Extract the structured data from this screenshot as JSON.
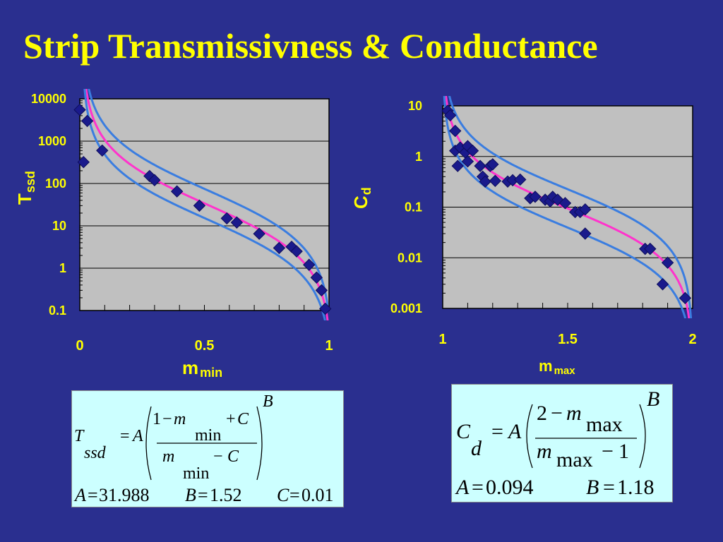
{
  "slide": {
    "title": "Strip Transmissivness & Conductance"
  },
  "colors": {
    "background": "#2a2f8f",
    "title": "#ffff00",
    "plot_area": "#c0c0c0",
    "data_points": "#1a1a8c",
    "fit_curve": "#ff33cc",
    "bound_curves": "#3a7de0",
    "equation_box": "#ccffff"
  },
  "chart_data": [
    {
      "id": "left",
      "type": "scatter",
      "title": "",
      "xlabel": {
        "main": "m",
        "sub": "min"
      },
      "ylabel": {
        "main": "T",
        "sub": "ssd"
      },
      "xlim": [
        0,
        1
      ],
      "ylim": [
        0.1,
        10000
      ],
      "yscale": "log",
      "grid": "horizontal",
      "x_ticks": [
        "0",
        "0.5",
        "1"
      ],
      "y_ticks": [
        "0.1",
        "1",
        "10",
        "100",
        "1000",
        "10000"
      ],
      "series": [
        {
          "kind": "points",
          "points": [
            [
              0.0,
              5500
            ],
            [
              0.015,
              320
            ],
            [
              0.03,
              3000
            ],
            [
              0.09,
              600
            ],
            [
              0.28,
              150
            ],
            [
              0.3,
              120
            ],
            [
              0.39,
              65
            ],
            [
              0.48,
              30
            ],
            [
              0.59,
              15
            ],
            [
              0.63,
              12
            ],
            [
              0.72,
              6.5
            ],
            [
              0.8,
              3
            ],
            [
              0.85,
              3.2
            ],
            [
              0.87,
              2.5
            ],
            [
              0.92,
              1.2
            ],
            [
              0.95,
              0.6
            ],
            [
              0.97,
              0.3
            ],
            [
              0.985,
              0.11
            ]
          ]
        },
        {
          "kind": "fit",
          "A": 31.988,
          "B": 1.52,
          "C": 0.01
        },
        {
          "kind": "upper_bound",
          "A": 31.988,
          "B": 1.52,
          "C": 0.01,
          "factor": 2.2
        },
        {
          "kind": "lower_bound",
          "A": 31.988,
          "B": 1.52,
          "C": 0.01,
          "factor": 0.45
        }
      ]
    },
    {
      "id": "right",
      "type": "scatter",
      "title": "",
      "xlabel": {
        "main": "m",
        "sub": "max"
      },
      "ylabel": {
        "main": "C",
        "sub": "d"
      },
      "xlim": [
        1,
        2
      ],
      "ylim": [
        0.001,
        10
      ],
      "yscale": "log",
      "grid": "horizontal",
      "x_ticks": [
        "1",
        "1.5",
        "2"
      ],
      "y_ticks": [
        "0.001",
        "0.01",
        "0.1",
        "1",
        "10"
      ],
      "series": [
        {
          "kind": "points",
          "points": [
            [
              1.02,
              8
            ],
            [
              1.03,
              6.5
            ],
            [
              1.05,
              3.2
            ],
            [
              1.05,
              1.3
            ],
            [
              1.06,
              0.65
            ],
            [
              1.07,
              1.5
            ],
            [
              1.09,
              1.2
            ],
            [
              1.1,
              1.6
            ],
            [
              1.1,
              0.8
            ],
            [
              1.12,
              1.3
            ],
            [
              1.15,
              0.65
            ],
            [
              1.16,
              0.4
            ],
            [
              1.17,
              0.32
            ],
            [
              1.19,
              0.65
            ],
            [
              1.2,
              0.7
            ],
            [
              1.21,
              0.33
            ],
            [
              1.26,
              0.32
            ],
            [
              1.28,
              0.34
            ],
            [
              1.31,
              0.35
            ],
            [
              1.35,
              0.15
            ],
            [
              1.37,
              0.16
            ],
            [
              1.41,
              0.14
            ],
            [
              1.43,
              0.13
            ],
            [
              1.44,
              0.16
            ],
            [
              1.46,
              0.14
            ],
            [
              1.49,
              0.12
            ],
            [
              1.53,
              0.08
            ],
            [
              1.55,
              0.08
            ],
            [
              1.57,
              0.09
            ],
            [
              1.57,
              0.03
            ],
            [
              1.81,
              0.015
            ],
            [
              1.83,
              0.015
            ],
            [
              1.88,
              0.003
            ],
            [
              1.9,
              0.008
            ],
            [
              1.97,
              0.0016
            ]
          ]
        },
        {
          "kind": "fit",
          "A": 0.094,
          "B": 1.18
        },
        {
          "kind": "upper_bound",
          "A": 0.094,
          "B": 1.18,
          "factor": 2.4
        },
        {
          "kind": "lower_bound",
          "A": 0.094,
          "B": 1.18,
          "factor": 0.42
        }
      ]
    }
  ],
  "equations": {
    "left": {
      "lhs_main": "T",
      "lhs_sub": "ssd",
      "eq": "=",
      "coef": "A",
      "num_one": "1",
      "num_minus": "−",
      "num_m": "m",
      "num_sub": "min",
      "num_plus": "+",
      "num_c": "C",
      "den_m": "m",
      "den_sub": "min",
      "den_minus": "−",
      "den_c": "C",
      "power": "B",
      "params": [
        {
          "name": "A",
          "value": "31.988"
        },
        {
          "name": "B",
          "value": "1.52"
        },
        {
          "name": "C",
          "value": "0.01"
        }
      ]
    },
    "right": {
      "lhs_main": "C",
      "lhs_sub": "d",
      "eq": "=",
      "coef": "A",
      "num_two": "2",
      "num_minus": "−",
      "num_m": "m",
      "num_sub": "max",
      "den_m": "m",
      "den_sub": "max",
      "den_minus": "−",
      "den_one": "1",
      "power": "B",
      "params": [
        {
          "name": "A",
          "value": "0.094"
        },
        {
          "name": "B",
          "value": "1.18"
        }
      ]
    }
  }
}
